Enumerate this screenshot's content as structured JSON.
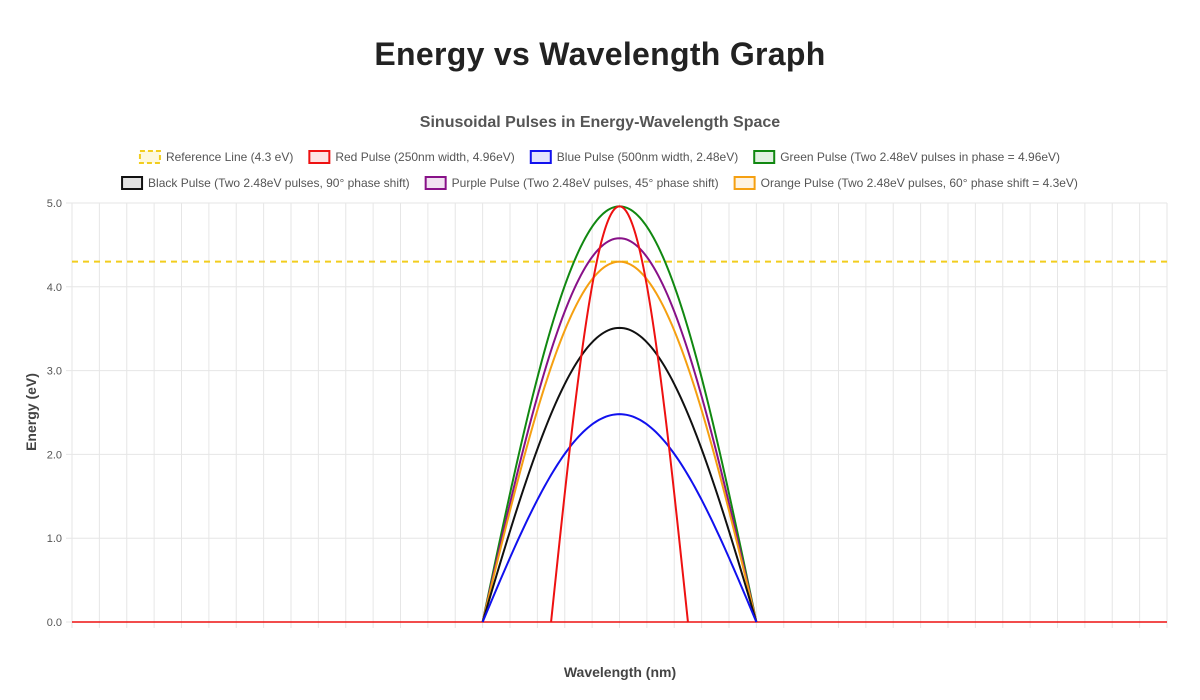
{
  "page": {
    "title": "Energy vs Wavelength Graph"
  },
  "chart_data": {
    "type": "line",
    "title": "Sinusoidal Pulses in Energy-Wavelength Space",
    "xlabel": "Wavelength (nm)",
    "ylabel": "Energy (eV)",
    "ylim": [
      0,
      5
    ],
    "yticks": [
      "0.0",
      "1.0",
      "2.0",
      "3.0",
      "4.0",
      "5.0"
    ],
    "xlim": [
      0,
      4000
    ],
    "grid": true,
    "legend_position": "top",
    "reference": {
      "name": "Reference Line (4.3 eV)",
      "value": 4.3,
      "color": "#f2cd1e",
      "dashed": true
    },
    "series": [
      {
        "name": "Red Pulse (250nm width, 4.96eV)",
        "color": "#ee1111",
        "center": 2000,
        "half_width": 250,
        "peak": 4.96
      },
      {
        "name": "Blue Pulse (500nm width, 2.48eV)",
        "color": "#1111ee",
        "center": 2000,
        "half_width": 500,
        "peak": 2.48
      },
      {
        "name": "Green Pulse (Two 2.48eV pulses in phase = 4.96eV)",
        "color": "#118811",
        "center": 2000,
        "half_width": 500,
        "peak": 4.96
      },
      {
        "name": "Black Pulse (Two 2.48eV pulses, 90° phase shift)",
        "color": "#111111",
        "center": 2000,
        "half_width": 500,
        "peak": 3.51
      },
      {
        "name": "Purple Pulse (Two 2.48eV pulses, 45° phase shift)",
        "color": "#881188",
        "center": 2000,
        "half_width": 500,
        "peak": 4.58
      },
      {
        "name": "Orange Pulse (Two 2.48eV pulses, 60° phase shift = 4.3eV)",
        "color": "#f5a011",
        "center": 2000,
        "half_width": 500,
        "peak": 4.3
      }
    ]
  }
}
